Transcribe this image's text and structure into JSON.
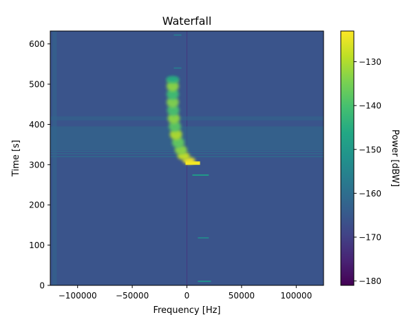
{
  "chart_data": {
    "type": "heatmap",
    "title": "Waterfall",
    "xlabel": "Frequency [Hz]",
    "ylabel": "Time [s]",
    "xlim": [
      -125000,
      125000
    ],
    "ylim": [
      0,
      632
    ],
    "xticks": [
      -100000,
      -50000,
      0,
      50000,
      100000
    ],
    "xtick_labels": [
      "−100000",
      "−50000",
      "0",
      "50000",
      "100000"
    ],
    "yticks": [
      0,
      100,
      200,
      300,
      400,
      500,
      600
    ],
    "ytick_labels": [
      "0",
      "100",
      "200",
      "300",
      "400",
      "500",
      "600"
    ],
    "colormap": "viridis",
    "colorbar": {
      "label": "Power [dBW]",
      "range": [
        -181,
        -123
      ],
      "ticks": [
        -180,
        -170,
        -160,
        -150,
        -140,
        -130
      ],
      "tick_labels": [
        "−180",
        "−170",
        "−160",
        "−150",
        "−140",
        "−130"
      ]
    },
    "noise_floor_dbw": -166,
    "features": [
      {
        "kind": "center-line",
        "freq_hz": 0,
        "time_s": [
          0,
          632
        ],
        "power_dbw": -172
      },
      {
        "kind": "band",
        "time_s": [
          335,
          395
        ],
        "power_dbw": -161
      },
      {
        "kind": "band",
        "time_s": [
          410,
          420
        ],
        "power_dbw": -162
      },
      {
        "kind": "line",
        "time_s": 320,
        "power_dbw": -158
      },
      {
        "kind": "line",
        "time_s": 327,
        "power_dbw": -158
      },
      {
        "kind": "line",
        "time_s": 333,
        "power_dbw": -160
      },
      {
        "kind": "edge-band",
        "freq_hz": [
          -123000,
          -119000
        ],
        "power_dbw": -162
      }
    ],
    "signal_trace": [
      {
        "time_s": 305,
        "freq_hz": 2000,
        "power_dbw": -124
      },
      {
        "time_s": 315,
        "freq_hz": -3000,
        "power_dbw": -128
      },
      {
        "time_s": 328,
        "freq_hz": -5500,
        "power_dbw": -133
      },
      {
        "time_s": 345,
        "freq_hz": -8000,
        "power_dbw": -137
      },
      {
        "time_s": 365,
        "freq_hz": -10000,
        "power_dbw": -130
      },
      {
        "time_s": 385,
        "freq_hz": -11000,
        "power_dbw": -138
      },
      {
        "time_s": 405,
        "freq_hz": -12000,
        "power_dbw": -133
      },
      {
        "time_s": 425,
        "freq_hz": -12500,
        "power_dbw": -140
      },
      {
        "time_s": 445,
        "freq_hz": -13000,
        "power_dbw": -134
      },
      {
        "time_s": 465,
        "freq_hz": -13000,
        "power_dbw": -141
      },
      {
        "time_s": 485,
        "freq_hz": -13000,
        "power_dbw": -133
      },
      {
        "time_s": 505,
        "freq_hz": -13000,
        "power_dbw": -139
      },
      {
        "time_s": 513,
        "freq_hz": -13000,
        "power_dbw": -146
      }
    ],
    "spurs": [
      {
        "time_s": 274,
        "freq_hz": [
          5000,
          20000
        ],
        "power_dbw": -150
      },
      {
        "time_s": 118,
        "freq_hz": [
          10000,
          20000
        ],
        "power_dbw": -155
      },
      {
        "time_s": 10,
        "freq_hz": [
          10000,
          22000
        ],
        "power_dbw": -152
      },
      {
        "time_s": 540,
        "freq_hz": [
          -12000,
          -5000
        ],
        "power_dbw": -158
      },
      {
        "time_s": 622,
        "freq_hz": [
          -12000,
          -5000
        ],
        "power_dbw": -158
      }
    ]
  }
}
